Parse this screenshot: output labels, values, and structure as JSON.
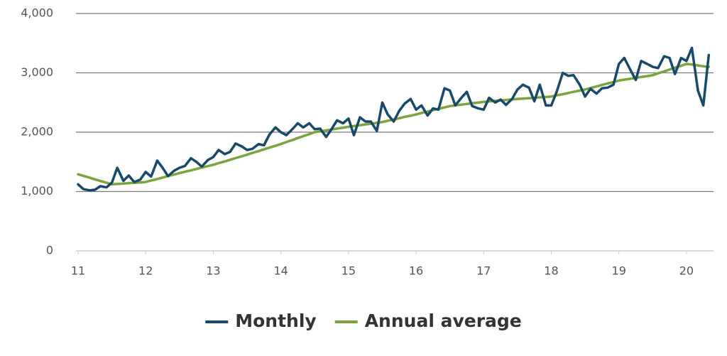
{
  "chart_data": {
    "type": "line",
    "x": [
      11,
      11.08,
      11.17,
      11.25,
      11.33,
      11.42,
      11.5,
      11.58,
      11.67,
      11.75,
      11.83,
      11.92,
      12,
      12.08,
      12.17,
      12.25,
      12.33,
      12.42,
      12.5,
      12.58,
      12.67,
      12.75,
      12.83,
      12.92,
      13,
      13.08,
      13.17,
      13.25,
      13.33,
      13.42,
      13.5,
      13.58,
      13.67,
      13.75,
      13.83,
      13.92,
      14,
      14.08,
      14.17,
      14.25,
      14.33,
      14.42,
      14.5,
      14.58,
      14.67,
      14.75,
      14.83,
      14.92,
      15,
      15.08,
      15.17,
      15.25,
      15.33,
      15.42,
      15.5,
      15.58,
      15.67,
      15.75,
      15.83,
      15.92,
      16,
      16.08,
      16.17,
      16.25,
      16.33,
      16.42,
      16.5,
      16.58,
      16.67,
      16.75,
      16.83,
      16.92,
      17,
      17.08,
      17.17,
      17.25,
      17.33,
      17.42,
      17.5,
      17.58,
      17.67,
      17.75,
      17.83,
      17.92,
      18,
      18.08,
      18.17,
      18.25,
      18.33,
      18.42,
      18.5,
      18.58,
      18.67,
      18.75,
      18.83,
      18.92,
      19,
      19.08,
      19.17,
      19.25,
      19.33,
      19.42,
      19.5,
      19.58,
      19.67,
      19.75,
      19.83,
      19.92,
      20,
      20.08,
      20.17,
      20.25,
      20.33
    ],
    "series": [
      {
        "name": "Monthly",
        "color": "#17496b",
        "values": [
          1120,
          1040,
          1020,
          1030,
          1090,
          1070,
          1150,
          1400,
          1180,
          1270,
          1160,
          1200,
          1330,
          1250,
          1520,
          1400,
          1260,
          1350,
          1400,
          1430,
          1560,
          1500,
          1420,
          1530,
          1580,
          1700,
          1630,
          1670,
          1810,
          1760,
          1700,
          1720,
          1800,
          1780,
          1960,
          2080,
          2000,
          1950,
          2050,
          2150,
          2080,
          2150,
          2050,
          2060,
          1920,
          2050,
          2200,
          2150,
          2230,
          1950,
          2250,
          2180,
          2180,
          2020,
          2500,
          2300,
          2180,
          2360,
          2480,
          2560,
          2380,
          2450,
          2280,
          2400,
          2380,
          2740,
          2700,
          2450,
          2580,
          2680,
          2440,
          2400,
          2380,
          2580,
          2500,
          2550,
          2460,
          2560,
          2720,
          2800,
          2750,
          2520,
          2800,
          2450,
          2450,
          2680,
          3000,
          2950,
          2960,
          2800,
          2600,
          2730,
          2650,
          2740,
          2750,
          2800,
          3150,
          3250,
          3050,
          2880,
          3200,
          3150,
          3100,
          3080,
          3280,
          3250,
          2980,
          3250,
          3200,
          3420,
          2700,
          2450,
          3300
        ]
      },
      {
        "name": "Annual average",
        "color": "#7aa53c",
        "values": [
          1290,
          1262,
          1233,
          1205,
          1177,
          1148,
          1120,
          1127,
          1133,
          1140,
          1147,
          1153,
          1160,
          1185,
          1210,
          1235,
          1260,
          1285,
          1310,
          1333,
          1357,
          1380,
          1403,
          1427,
          1450,
          1478,
          1507,
          1535,
          1563,
          1592,
          1620,
          1650,
          1680,
          1710,
          1740,
          1770,
          1800,
          1833,
          1867,
          1900,
          1933,
          1967,
          2000,
          2015,
          2030,
          2045,
          2060,
          2075,
          2090,
          2103,
          2117,
          2130,
          2143,
          2157,
          2170,
          2192,
          2213,
          2235,
          2257,
          2278,
          2300,
          2323,
          2347,
          2370,
          2393,
          2417,
          2440,
          2452,
          2463,
          2475,
          2487,
          2498,
          2510,
          2518,
          2527,
          2535,
          2543,
          2552,
          2560,
          2567,
          2573,
          2580,
          2587,
          2593,
          2600,
          2620,
          2640,
          2660,
          2680,
          2700,
          2720,
          2745,
          2770,
          2795,
          2820,
          2845,
          2870,
          2885,
          2900,
          2915,
          2930,
          2945,
          2960,
          2992,
          3023,
          3055,
          3087,
          3118,
          3150,
          3140,
          3125,
          3110,
          3100
        ]
      }
    ],
    "xlim": [
      11,
      20.4
    ],
    "xticks": [
      11,
      12,
      13,
      14,
      15,
      16,
      17,
      18,
      19,
      20
    ],
    "ylim": [
      0,
      4000
    ],
    "yticks": [
      0,
      {
        "value": 1000,
        "label": "1,000"
      },
      {
        "value": 2000,
        "label": "2,000"
      },
      {
        "value": 3000,
        "label": "3,000"
      },
      {
        "value": 4000,
        "label": "4,000"
      }
    ],
    "grid": true
  }
}
